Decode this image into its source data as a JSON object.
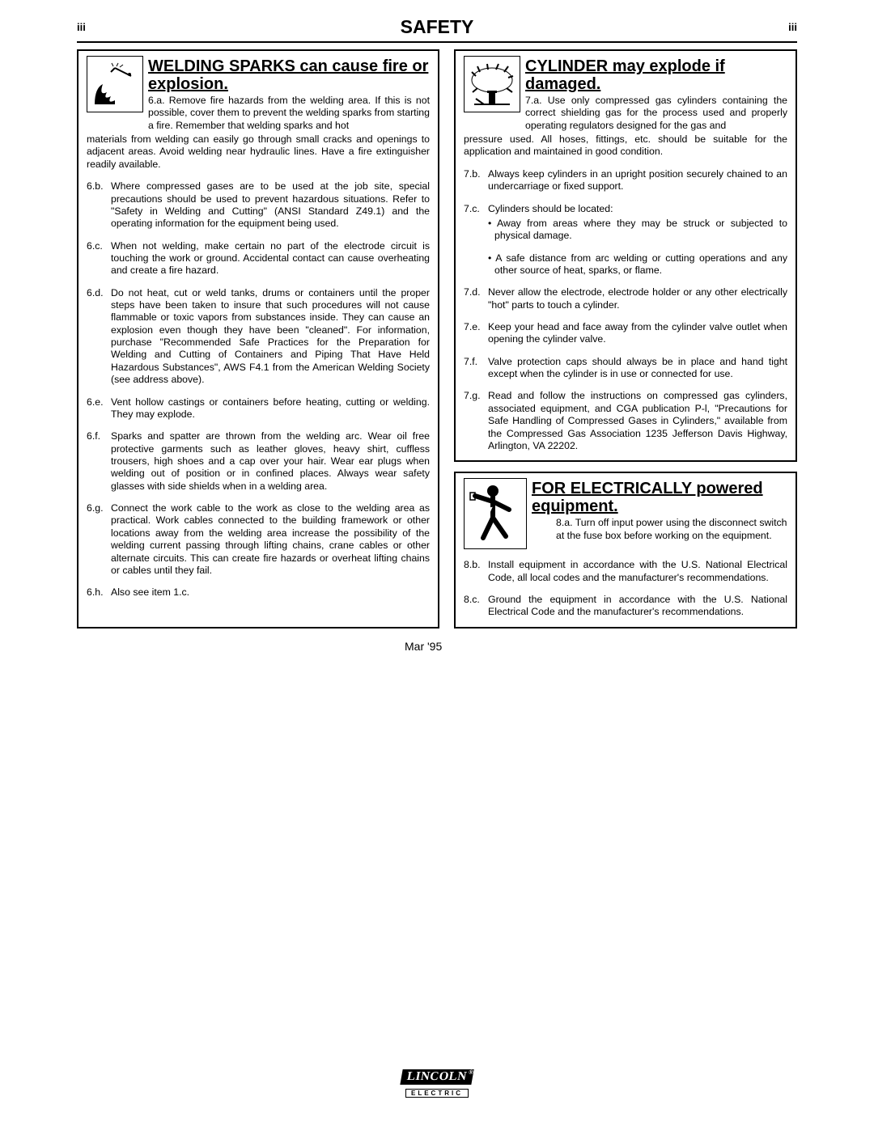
{
  "header": {
    "page_num_left": "iii",
    "title": "SAFETY",
    "page_num_right": "iii"
  },
  "left_col": {
    "title": "WELDING SPARKS can cause fire or explosion.",
    "first_item": {
      "num": "6.a.",
      "text_indented": "Remove fire hazards from the welding area. If this is not possible, cover them to prevent the welding sparks from starting a fire. Remember that welding sparks and hot",
      "text_full": "materials from welding can easily go through small cracks and openings to adjacent areas. Avoid welding near hydraulic lines. Have a fire extinguisher readily available."
    },
    "items": [
      {
        "num": "6.b.",
        "text": "Where compressed gases are to be used at the job site, special precautions should be used to prevent hazardous situations. Refer to \"Safety in Welding and Cutting\" (ANSI Standard Z49.1) and the operating information for the equipment being used."
      },
      {
        "num": "6.c.",
        "text": "When not welding, make certain no part of the electrode circuit is touching the work or ground. Accidental contact can cause overheating and create a fire hazard."
      },
      {
        "num": "6.d.",
        "text": "Do not heat, cut or weld tanks, drums or containers until the proper steps have been taken to insure that such procedures will not cause flammable or toxic vapors from substances inside. They can cause an explosion even though they have been \"cleaned\". For information, purchase \"Recommended Safe Practices for the Preparation for Welding and Cutting of Containers and Piping That Have Held Hazardous Substances\", AWS F4.1 from the American Welding Society (see address above)."
      },
      {
        "num": "6.e.",
        "text": "Vent hollow castings or containers before heating, cutting or welding. They may explode."
      },
      {
        "num": "6.f.",
        "text": "Sparks and spatter are thrown from the welding arc. Wear oil free protective garments such as leather gloves, heavy shirt, cuffless trousers, high shoes and a cap over your hair. Wear ear plugs when welding out of position or in confined places. Always wear safety glasses with side shields when in a welding area."
      },
      {
        "num": "6.g.",
        "text": "Connect the work cable to the work as close to the welding area as practical. Work cables connected to the building framework or other locations away from the welding area increase the possibility of the welding current passing through lifting chains, crane cables or other alternate circuits. This can create fire hazards or overheat lifting chains or cables until they fail."
      },
      {
        "num": "6.h.",
        "text": "Also see item 1.c."
      }
    ]
  },
  "right_col_top": {
    "title": "CYLINDER may explode if damaged.",
    "first_item": {
      "num": "7.a.",
      "text_indented": "Use only compressed gas cylinders containing the correct shielding gas for the process used and properly operating regulators designed for the gas and",
      "text_full": "pressure used. All hoses, fittings, etc. should be suitable for the application and maintained in good condition."
    },
    "items": [
      {
        "num": "7.b.",
        "text": "Always keep cylinders in an upright position securely chained to an undercarriage or fixed support."
      },
      {
        "num": "7.c.",
        "text": "Cylinders should be located:"
      },
      {
        "num": "7.d.",
        "text": "Never allow the electrode, electrode holder or any other electrically \"hot\" parts to touch a cylinder."
      },
      {
        "num": "7.e.",
        "text": "Keep your head and face away from the cylinder valve outlet when opening the cylinder valve."
      },
      {
        "num": "7.f.",
        "text": "Valve protection caps should always be in place and hand tight except when the cylinder is in use or connected for use."
      },
      {
        "num": "7.g.",
        "text": "Read and follow the instructions on compressed gas cylinders, associated equipment, and CGA publication P-l, \"Precautions for Safe Handling of Compressed Gases in Cylinders,\" available from the Compressed Gas Association 1235 Jefferson Davis Highway, Arlington, VA 22202."
      }
    ],
    "bullets_7c": [
      "Away from areas where they may be struck or subjected to physical damage.",
      "A safe distance from arc welding or cutting operations and any other source of heat, sparks, or flame."
    ]
  },
  "right_col_bot": {
    "title": "FOR ELECTRICALLY powered equipment.",
    "first_item": {
      "num": "8.a.",
      "text_indented": "Turn off input power using the disconnect switch at the fuse box before working on the equipment."
    },
    "items": [
      {
        "num": "8.b.",
        "text": "Install equipment in accordance with the U.S. National Electrical Code, all local codes and the manufacturer's recommendations."
      },
      {
        "num": "8.c.",
        "text": "Ground the equipment in accordance with the U.S. National Electrical Code and the manufacturer's recommendations."
      }
    ]
  },
  "footer": {
    "date": "Mar '95",
    "logo_main": "LINCOLN",
    "logo_sub": "ELECTRIC"
  }
}
